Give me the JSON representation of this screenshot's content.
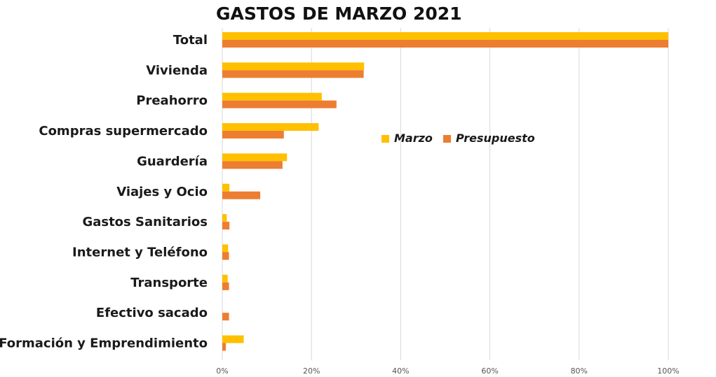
{
  "chart_data": {
    "type": "bar",
    "orientation": "horizontal",
    "title": "GASTOS DE MARZO 2021",
    "xlabel": "",
    "ylabel": "",
    "categories": [
      "Total",
      "Vivienda",
      "Preahorro",
      "Compras supermercado",
      "Guardería",
      "Viajes y Ocio",
      "Gastos Sanitarios",
      "Internet y Teléfono",
      "Transporte",
      "Efectivo sacado",
      "Formación y Emprendimiento"
    ],
    "series": [
      {
        "name": "Marzo",
        "color": "#FFC000",
        "values": [
          100,
          31.8,
          22.3,
          21.6,
          14.5,
          1.6,
          1.0,
          1.3,
          1.2,
          0,
          4.8
        ]
      },
      {
        "name": "Presupuesto",
        "color": "#ED7D31",
        "values": [
          100,
          31.7,
          25.6,
          13.8,
          13.5,
          8.5,
          1.6,
          1.5,
          1.5,
          1.5,
          0.8
        ]
      }
    ],
    "xlim": [
      0,
      100
    ],
    "xticks": [
      "0%",
      "20%",
      "40%",
      "60%",
      "80%",
      "100%"
    ],
    "grid": true,
    "legend_position": "center-right"
  }
}
